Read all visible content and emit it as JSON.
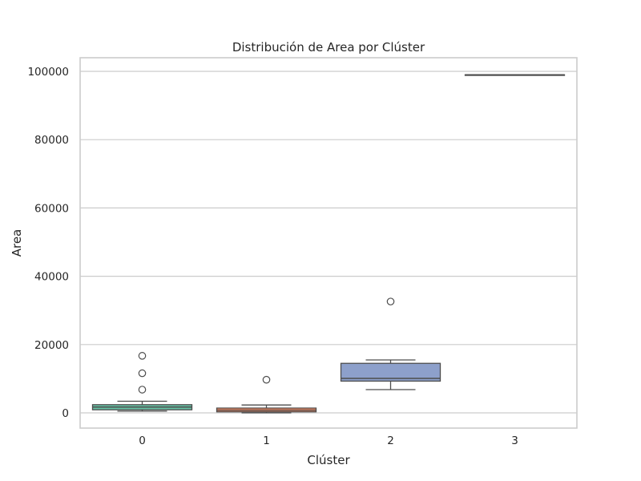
{
  "chart_data": {
    "type": "box",
    "title": "Distribución de Area por Clúster",
    "xlabel": "Clúster",
    "ylabel": "Area",
    "categories": [
      "0",
      "1",
      "2",
      "3"
    ],
    "yticks": [
      0,
      20000,
      40000,
      60000,
      80000,
      100000
    ],
    "ylim": [
      -4400,
      104300
    ],
    "grid": true,
    "series": [
      {
        "category": "0",
        "color": "#66c2a5",
        "min": 500,
        "q1": 900,
        "median": 1700,
        "q3": 2400,
        "max": 3400,
        "outliers": [
          6800,
          11600,
          16700
        ]
      },
      {
        "category": "1",
        "color": "#fc8d62",
        "min": 0,
        "q1": 300,
        "median": 800,
        "q3": 1400,
        "max": 2300,
        "outliers": [
          9700
        ]
      },
      {
        "category": "2",
        "color": "#8da0cb",
        "min": 6800,
        "q1": 9300,
        "median": 10100,
        "q3": 14500,
        "max": 15500,
        "outliers": [
          32600
        ]
      },
      {
        "category": "3",
        "color": "#e78ac3",
        "min": 99000,
        "q1": 99000,
        "median": 99000,
        "q3": 99000,
        "max": 99000,
        "outliers": []
      }
    ]
  }
}
